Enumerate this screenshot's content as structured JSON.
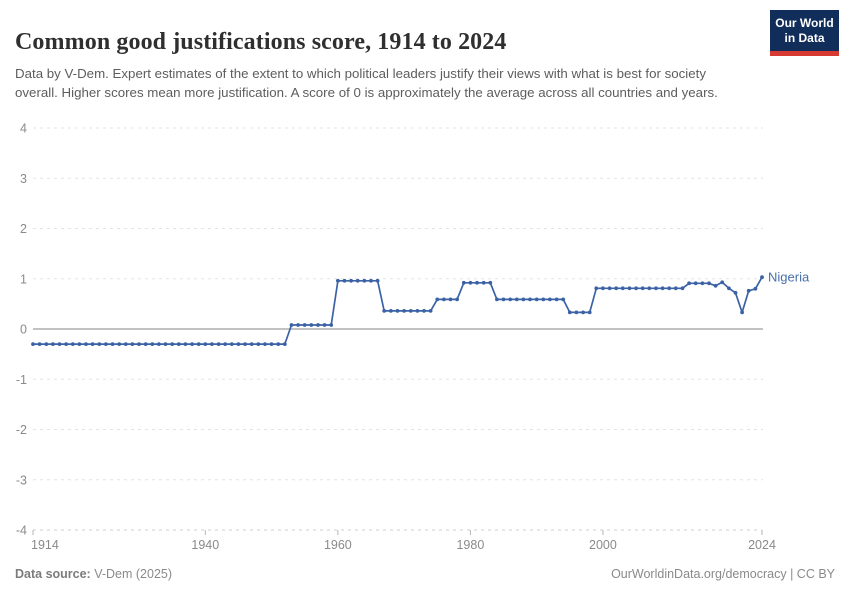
{
  "header": {
    "title": "Common good justifications score, 1914 to 2024",
    "subtitle": "Data by V-Dem. Expert estimates of the extent to which political leaders justify their views with what is best for society overall. Higher scores mean more justification. A score of 0 is approximately the average across all countries and years.",
    "logo": {
      "line1": "Our World",
      "line2": "in Data",
      "bg_color": "#112d5a",
      "accent_color": "#d73a32"
    }
  },
  "chart_data": {
    "type": "line",
    "title": "Common good justifications score, 1914 to 2024",
    "xlabel": "",
    "ylabel": "",
    "x_start": 1914,
    "x_end": 2024,
    "ylim": [
      -4,
      4
    ],
    "yticks": [
      4,
      3,
      2,
      1,
      0,
      -1,
      -2,
      -3,
      -4
    ],
    "xticks": [
      1914,
      1940,
      1960,
      1980,
      2000,
      2024
    ],
    "grid": "horizontal dashed, solid zero line, legend as end-of-line label",
    "line_color": "#3c62a6",
    "label_color": "#4a70ad",
    "grid_color": "#e3e3e3",
    "zero_line_color": "#9e9e9e",
    "axis_text_color": "#8a8a8a",
    "series": [
      {
        "name": "Nigeria",
        "x_first_year": 1914,
        "values": [
          -0.3,
          -0.3,
          -0.3,
          -0.3,
          -0.3,
          -0.3,
          -0.3,
          -0.3,
          -0.3,
          -0.3,
          -0.3,
          -0.3,
          -0.3,
          -0.3,
          -0.3,
          -0.3,
          -0.3,
          -0.3,
          -0.3,
          -0.3,
          -0.3,
          -0.3,
          -0.3,
          -0.3,
          -0.3,
          -0.3,
          -0.3,
          -0.3,
          -0.3,
          -0.3,
          -0.3,
          -0.3,
          -0.3,
          -0.3,
          -0.3,
          -0.3,
          -0.3,
          -0.3,
          -0.3,
          0.08,
          0.08,
          0.08,
          0.08,
          0.08,
          0.08,
          0.08,
          0.96,
          0.96,
          0.96,
          0.96,
          0.96,
          0.96,
          0.96,
          0.36,
          0.36,
          0.36,
          0.36,
          0.36,
          0.36,
          0.36,
          0.36,
          0.59,
          0.59,
          0.59,
          0.59,
          0.92,
          0.92,
          0.92,
          0.92,
          0.92,
          0.59,
          0.59,
          0.59,
          0.59,
          0.59,
          0.59,
          0.59,
          0.59,
          0.59,
          0.59,
          0.59,
          0.33,
          0.33,
          0.33,
          0.33,
          0.81,
          0.81,
          0.81,
          0.81,
          0.81,
          0.81,
          0.81,
          0.81,
          0.81,
          0.81,
          0.81,
          0.81,
          0.81,
          0.81,
          0.91,
          0.91,
          0.91,
          0.91,
          0.86,
          0.93,
          0.81,
          0.72,
          0.33,
          0.76,
          0.8,
          1.03
        ]
      }
    ]
  },
  "footer": {
    "source_label": "Data source:",
    "source_value": " V-Dem (2025)",
    "credit": "OurWorldinData.org/democracy | CC BY"
  }
}
